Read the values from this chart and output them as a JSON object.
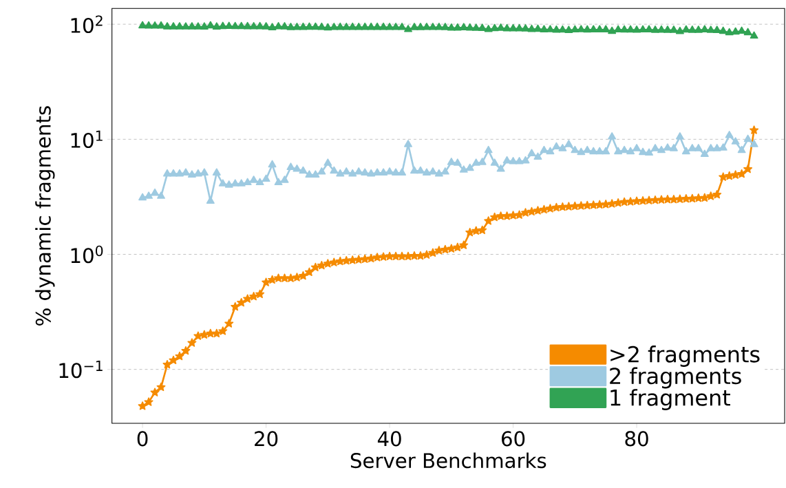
{
  "chart_data": {
    "type": "line",
    "xlabel": "Server Benchmarks",
    "ylabel": "% dynamic fragments",
    "x": [
      0,
      1,
      2,
      3,
      4,
      5,
      6,
      7,
      8,
      9,
      10,
      11,
      12,
      13,
      14,
      15,
      16,
      17,
      18,
      19,
      20,
      21,
      22,
      23,
      24,
      25,
      26,
      27,
      28,
      29,
      30,
      31,
      32,
      33,
      34,
      35,
      36,
      37,
      38,
      39,
      40,
      41,
      42,
      43,
      44,
      45,
      46,
      47,
      48,
      49,
      50,
      51,
      52,
      53,
      54,
      55,
      56,
      57,
      58,
      59,
      60,
      61,
      62,
      63,
      64,
      65,
      66,
      67,
      68,
      69,
      70,
      71,
      72,
      73,
      74,
      75,
      76,
      77,
      78,
      79,
      80,
      81,
      82,
      83,
      84,
      85,
      86,
      87,
      88,
      89,
      90,
      91,
      92,
      93,
      94,
      95,
      96,
      97,
      98,
      99
    ],
    "series": [
      {
        "name": ">2 fragments",
        "color": "#f58b00",
        "marker": "star",
        "values": [
          0.048,
          0.052,
          0.063,
          0.07,
          0.11,
          0.12,
          0.13,
          0.145,
          0.17,
          0.195,
          0.2,
          0.205,
          0.205,
          0.215,
          0.25,
          0.35,
          0.38,
          0.41,
          0.43,
          0.45,
          0.57,
          0.6,
          0.62,
          0.62,
          0.62,
          0.63,
          0.65,
          0.7,
          0.77,
          0.8,
          0.83,
          0.85,
          0.87,
          0.88,
          0.89,
          0.9,
          0.91,
          0.92,
          0.94,
          0.95,
          0.96,
          0.96,
          0.96,
          0.96,
          0.97,
          0.97,
          0.99,
          1.03,
          1.08,
          1.1,
          1.12,
          1.15,
          1.2,
          1.55,
          1.6,
          1.62,
          1.95,
          2.1,
          2.15,
          2.15,
          2.18,
          2.2,
          2.3,
          2.35,
          2.4,
          2.45,
          2.5,
          2.55,
          2.58,
          2.6,
          2.62,
          2.64,
          2.66,
          2.68,
          2.7,
          2.72,
          2.75,
          2.8,
          2.85,
          2.87,
          2.9,
          2.92,
          2.94,
          2.96,
          2.98,
          3.0,
          3.0,
          3.02,
          3.04,
          3.05,
          3.08,
          3.1,
          3.2,
          3.3,
          4.7,
          4.8,
          4.9,
          5.0,
          5.5,
          12
        ]
      },
      {
        "name": "2 fragments",
        "color": "#9ecae1",
        "marker": "triangle",
        "values": [
          3.1,
          3.2,
          3.4,
          3.2,
          5.0,
          5.0,
          5.0,
          5.1,
          4.9,
          5.0,
          5.1,
          2.9,
          5.1,
          4.1,
          4.0,
          4.1,
          4.1,
          4.2,
          4.4,
          4.2,
          4.5,
          6.0,
          4.2,
          4.4,
          5.7,
          5.5,
          5.3,
          4.9,
          4.9,
          5.2,
          6.2,
          5.3,
          5.0,
          5.2,
          5.0,
          5.2,
          5.1,
          5.0,
          5.1,
          5.1,
          5.2,
          5.1,
          5.1,
          9.0,
          5.3,
          5.3,
          5.1,
          5.2,
          5.0,
          5.2,
          6.3,
          6.2,
          5.4,
          5.6,
          6.2,
          6.3,
          8.0,
          6.2,
          5.5,
          6.5,
          6.4,
          6.4,
          6.5,
          7.5,
          7.0,
          8.0,
          7.8,
          8.6,
          8.3,
          9.0,
          8.0,
          7.7,
          8.0,
          7.8,
          7.8,
          7.8,
          10.5,
          7.8,
          8.0,
          7.8,
          8.3,
          7.7,
          7.6,
          8.3,
          8.0,
          8.4,
          8.3,
          10.5,
          7.8,
          8.3,
          8.3,
          7.4,
          8.3,
          8.3,
          8.4,
          10.8,
          9.5,
          8.0,
          10.0,
          9.0
        ]
      },
      {
        "name": "1 fragment",
        "color": "#31a354",
        "marker": "triangle",
        "values": [
          96.9,
          96.7,
          96.5,
          96.7,
          94.9,
          94.9,
          94.9,
          94.8,
          94.9,
          94.8,
          94.7,
          96.9,
          94.7,
          95.7,
          95.8,
          95.5,
          95.5,
          95.4,
          95.2,
          95.4,
          94.9,
          93.4,
          95.2,
          95.0,
          93.7,
          93.9,
          94.1,
          94.4,
          94.3,
          94.0,
          93.0,
          93.8,
          94.1,
          93.9,
          94.1,
          93.9,
          94.0,
          94.1,
          94.0,
          94.0,
          93.8,
          93.9,
          93.9,
          90.0,
          93.7,
          93.7,
          93.9,
          93.8,
          93.9,
          93.7,
          92.6,
          92.7,
          93.4,
          92.8,
          92.2,
          92.1,
          90.0,
          91.7,
          92.4,
          91.4,
          91.4,
          91.4,
          91.2,
          90.2,
          90.6,
          89.6,
          89.7,
          88.9,
          89.1,
          88.4,
          89.4,
          89.7,
          89.3,
          89.5,
          89.5,
          89.5,
          86.8,
          89.4,
          89.2,
          89.3,
          88.8,
          89.4,
          89.5,
          88.7,
          89.0,
          88.6,
          88.7,
          86.5,
          89.2,
          88.7,
          88.6,
          89.5,
          88.5,
          88.4,
          86.9,
          84.4,
          85.6,
          87.0,
          84.5,
          79.0
        ]
      }
    ],
    "log": "y",
    "grid": "y",
    "legend": "bottom right",
    "xlim": [
      -4.95,
      103.95
    ],
    "xticks": [
      0,
      20,
      40,
      60,
      80
    ],
    "ylim": [
      0.034,
      137
    ],
    "yticks": [
      {
        "value": 0.1,
        "label": "10$^{−1}$"
      },
      {
        "value": 1,
        "label": "10$^{0}$"
      },
      {
        "value": 10,
        "label": "10$^{1}$"
      },
      {
        "value": 100,
        "label": "10$^{2}$"
      }
    ]
  }
}
